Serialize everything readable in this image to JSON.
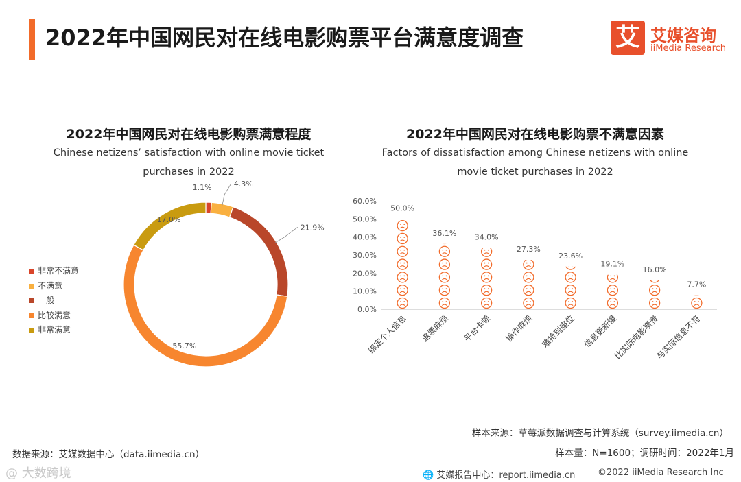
{
  "header": {
    "title": "2022年中国网民对在线电影购票平台满意度调查",
    "logo_cn": "艾媒咨询",
    "logo_en": "iiMedia Research",
    "logo_glyph": "艾"
  },
  "chart_data": [
    {
      "type": "pie",
      "variant": "donut",
      "title": "2022年中国网民对在线电影购票满意程度",
      "subtitle_line1": "Chinese netizens’ satisfaction with online movie ticket",
      "subtitle_line2": "purchases in 2022",
      "labels": [
        "非常不满意",
        "不满意",
        "一般",
        "比较满意",
        "非常满意"
      ],
      "values": [
        1.1,
        4.3,
        21.9,
        55.7,
        17.0
      ],
      "value_labels": [
        "1.1%",
        "4.3%",
        "21.9%",
        "55.7%",
        "17.0%"
      ],
      "colors": [
        "#d9452a",
        "#f9b040",
        "#b9472a",
        "#f7862f",
        "#c99b10"
      ],
      "legend_position": "left"
    },
    {
      "type": "bar",
      "variant": "pictograph",
      "title": "2022年中国网民对在线电影购票不满意因素",
      "subtitle_line1": "Factors of dissatisfaction among Chinese netizens with online",
      "subtitle_line2": "movie ticket purchases in 2022",
      "categories": [
        "绑定个人信息",
        "退票麻烦",
        "平台卡顿",
        "操作麻烦",
        "难抢到座位",
        "信息更新慢",
        "比实际电影票贵",
        "与实际信息不符"
      ],
      "values": [
        50.0,
        36.1,
        34.0,
        27.3,
        23.6,
        19.1,
        16.0,
        7.7
      ],
      "value_labels": [
        "50.0%",
        "36.1%",
        "34.0%",
        "27.3%",
        "23.6%",
        "19.1%",
        "16.0%",
        "7.7%"
      ],
      "ylim": [
        0,
        60
      ],
      "yticks": [
        "0.0%",
        "10.0%",
        "20.0%",
        "30.0%",
        "40.0%",
        "50.0%",
        "60.0%"
      ],
      "icon": "sad-face-icon",
      "color": "#f26b2a"
    }
  ],
  "footer": {
    "sample_source": "样本来源：草莓派数据调查与计算系统（survey.iimedia.cn）",
    "sample_size": "样本量：N=1600；调研时间：2022年1月",
    "data_source": "数据来源：艾媒数据中心（data.iimedia.cn）",
    "report_center": "艾媒报告中心：report.iimedia.cn",
    "copyright": "©2022  iiMedia Research  Inc",
    "watermark": "@ 大数跨境"
  }
}
